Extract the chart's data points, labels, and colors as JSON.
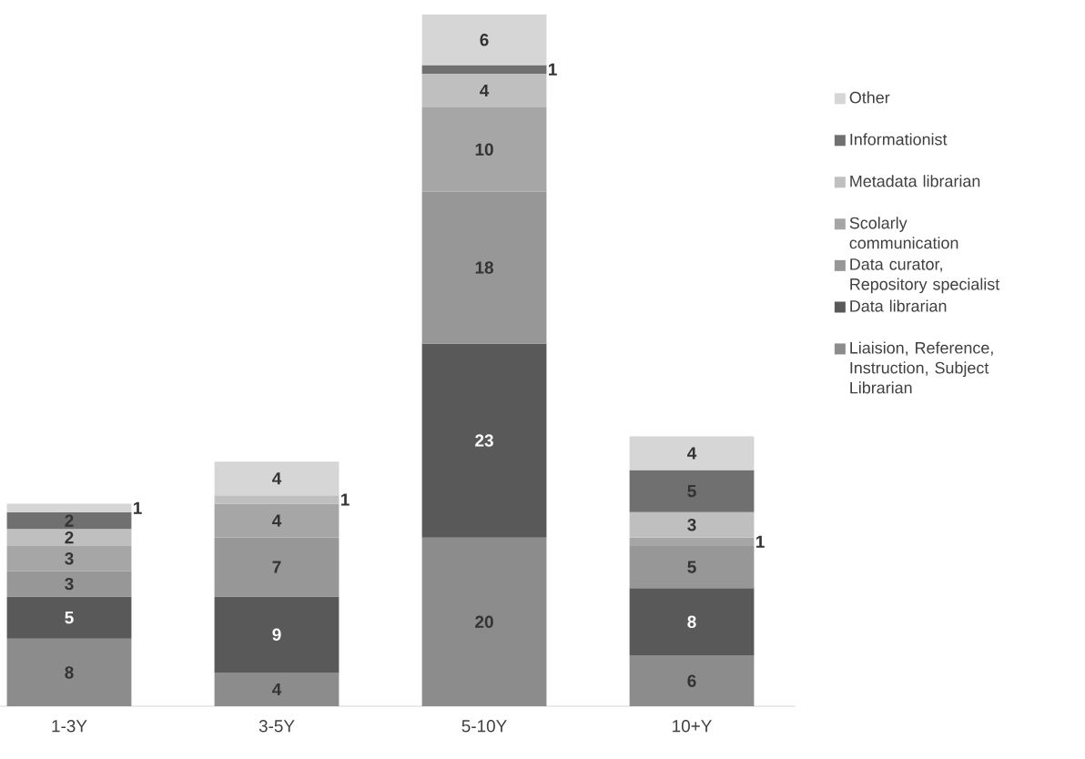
{
  "chart_data": {
    "type": "bar",
    "stacked": true,
    "data_labels": true,
    "legend": "right",
    "categories": [
      "1-3Y",
      "3-5Y",
      "5-10Y",
      "10+Y"
    ],
    "series": [
      {
        "name": "Liaision, Reference, Instruction, Subject Librarian",
        "color": "#8c8c8c",
        "values": [
          8,
          4,
          20,
          6
        ]
      },
      {
        "name": "Data librarian",
        "color": "#595959",
        "values": [
          5,
          9,
          23,
          8
        ]
      },
      {
        "name": "Data curator, Repository specialist",
        "color": "#979797",
        "values": [
          3,
          7,
          18,
          5
        ]
      },
      {
        "name": "Scolarly communication",
        "color": "#a6a6a6",
        "values": [
          3,
          4,
          10,
          1
        ]
      },
      {
        "name": "Metadata librarian",
        "color": "#bfbfbf",
        "values": [
          2,
          1,
          4,
          3
        ]
      },
      {
        "name": "Informationist",
        "color": "#707070",
        "values": [
          2,
          null,
          1,
          5
        ]
      },
      {
        "name": "Other",
        "color": "#d6d6d6",
        "values": [
          1,
          4,
          6,
          4
        ]
      }
    ]
  }
}
